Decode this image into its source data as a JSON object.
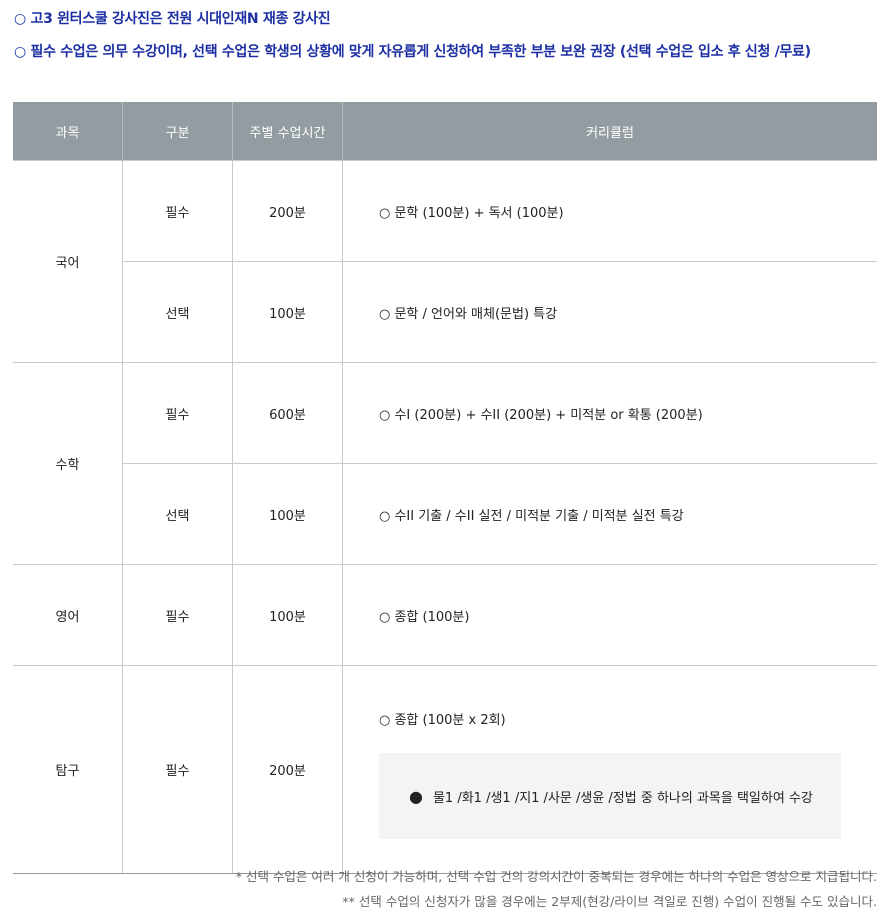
{
  "notes": [
    "○ 고3 윈터스쿨 강사진은 전원 시대인재N 재종 강사진",
    "○ 필수 수업은 의무 수강이며, 선택 수업은 학생의 상황에 맞게 자유롭게 신청하여 부족한 부분 보완 권장 (선택 수업은 입소 후 신청 /무료)"
  ],
  "table": {
    "headers": [
      "과목",
      "구분",
      "주별 수업시간",
      "커리큘럼"
    ],
    "rows": [
      {
        "subject": "국어",
        "type": "필수",
        "hours": "200분",
        "curriculum": "○ 문학 (100분) + 독서 (100분)"
      },
      {
        "type": "선택",
        "hours": "100분",
        "curriculum": "○ 문학 / 언어와 매체(문법) 특강"
      },
      {
        "subject": "수학",
        "type": "필수",
        "hours": "600분",
        "curriculum": "○ 수I (200분) + 수II (200분) + 미적분 or 확통 (200분)"
      },
      {
        "type": "선택",
        "hours": "100분",
        "curriculum": "○ 수II 기출 / 수II 실전 / 미적분 기출 / 미적분 실전 특강"
      },
      {
        "subject": "영어",
        "type": "필수",
        "hours": "100분",
        "curriculum": "○ 종합 (100분)"
      },
      {
        "subject": "탐구",
        "type": "필수",
        "hours": "200분",
        "curriculum": "○ 종합 (100분 x 2회)",
        "detail_bullet": "●",
        "detail": "물1 /화1 /생1 /지1 /사문 /생윤 /정법 중 하나의 과목을 택일하여 수강"
      }
    ]
  },
  "footnotes": [
    "* 선택 수업은 여러 개 신청이 가능하며, 선택 수업 건의 강의시간이 중복되는 경우에는 하나의 수업은 영상으로 지급됩니다.",
    "** 선택 수업의 신청자가 많을 경우에는 2부제(현강/라이브 격일로 진행) 수업이 진행될 수도 있습니다."
  ]
}
